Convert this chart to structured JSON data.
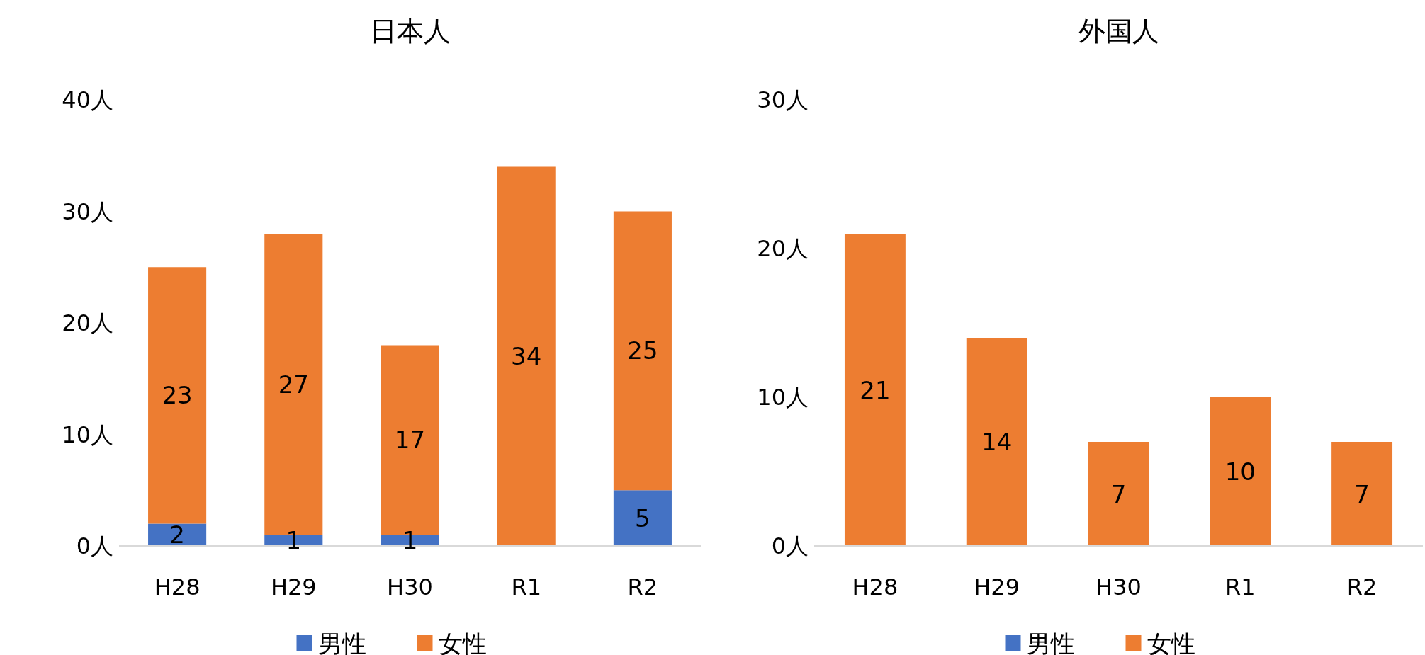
{
  "chart_data": [
    {
      "type": "bar",
      "title": "日本人",
      "categories": [
        "H28",
        "H29",
        "H30",
        "R1",
        "R2"
      ],
      "stacked": true,
      "data_labels": true,
      "legend": "bottom",
      "grid": false,
      "ylim": [
        0,
        40
      ],
      "yticks": [
        {
          "value": 0,
          "label": "0人"
        },
        {
          "value": 10,
          "label": "10人"
        },
        {
          "value": 20,
          "label": "20人"
        },
        {
          "value": 30,
          "label": "30人"
        },
        {
          "value": 40,
          "label": "40人"
        }
      ],
      "series": [
        {
          "name": "男性",
          "color": "#4472c4",
          "values": [
            2,
            1,
            1,
            null,
            5
          ]
        },
        {
          "name": "女性",
          "color": "#ed7d31",
          "values": [
            23,
            27,
            17,
            34,
            25
          ]
        }
      ]
    },
    {
      "type": "bar",
      "title": "外国人",
      "categories": [
        "H28",
        "H29",
        "H30",
        "R1",
        "R2"
      ],
      "stacked": true,
      "data_labels": true,
      "legend": "bottom",
      "grid": false,
      "ylim": [
        0,
        30
      ],
      "yticks": [
        {
          "value": 0,
          "label": "0人"
        },
        {
          "value": 10,
          "label": "10人"
        },
        {
          "value": 20,
          "label": "20人"
        },
        {
          "value": 30,
          "label": "30人"
        }
      ],
      "series": [
        {
          "name": "男性",
          "color": "#4472c4",
          "values": [
            null,
            null,
            null,
            null,
            null
          ]
        },
        {
          "name": "女性",
          "color": "#ed7d31",
          "values": [
            21,
            14,
            7,
            10,
            7
          ]
        }
      ]
    }
  ]
}
